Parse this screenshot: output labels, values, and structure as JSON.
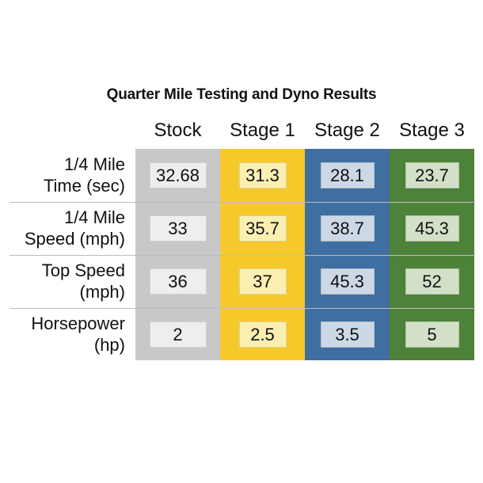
{
  "chart_data": {
    "type": "table",
    "title": "Quarter Mile Testing and Dyno Results",
    "columns": [
      "Stock",
      "Stage 1",
      "Stage 2",
      "Stage 3"
    ],
    "column_colors": [
      "#c8c8c8",
      "#f6c92b",
      "#3f6fa0",
      "#4d8338"
    ],
    "cell_colors": [
      "#eeeeee",
      "#fbefb2",
      "#cdd8e6",
      "#d2e0c8"
    ],
    "rows": [
      {
        "label": [
          "1/4 Mile",
          "Time (sec)"
        ],
        "values": [
          "32.68",
          "31.3",
          "28.1",
          "23.7"
        ]
      },
      {
        "label": [
          "1/4 Mile",
          "Speed (mph)"
        ],
        "values": [
          "33",
          "35.7",
          "38.7",
          "45.3"
        ]
      },
      {
        "label": [
          "Top Speed",
          "(mph)"
        ],
        "values": [
          "36",
          "37",
          "45.3",
          "52"
        ]
      },
      {
        "label": [
          "Horsepower",
          "(hp)"
        ],
        "values": [
          "2",
          "2.5",
          "3.5",
          "5"
        ]
      }
    ]
  }
}
